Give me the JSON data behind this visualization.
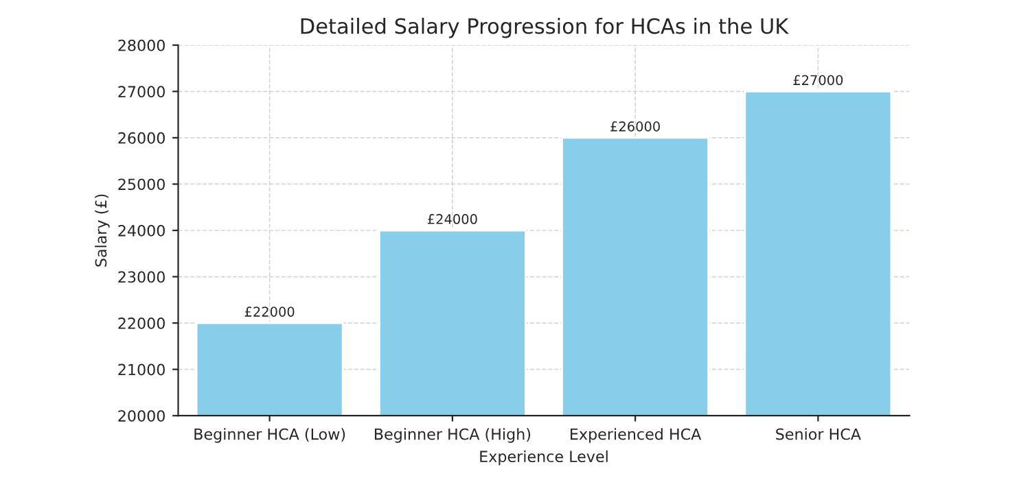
{
  "chart_data": {
    "type": "bar",
    "title": "Detailed Salary Progression for HCAs in the UK",
    "xlabel": "Experience Level",
    "ylabel": "Salary (£)",
    "categories": [
      "Beginner HCA (Low)",
      "Beginner HCA (High)",
      "Experienced HCA",
      "Senior HCA"
    ],
    "values": [
      22000,
      24000,
      26000,
      27000
    ],
    "color": "#87ceeb",
    "value_labels": [
      "£22000",
      "£24000",
      "£26000",
      "£27000"
    ],
    "ylim": [
      20000,
      28000
    ],
    "yticks": [
      20000,
      21000,
      22000,
      23000,
      24000,
      25000,
      26000,
      27000,
      28000
    ],
    "grid": true
  }
}
